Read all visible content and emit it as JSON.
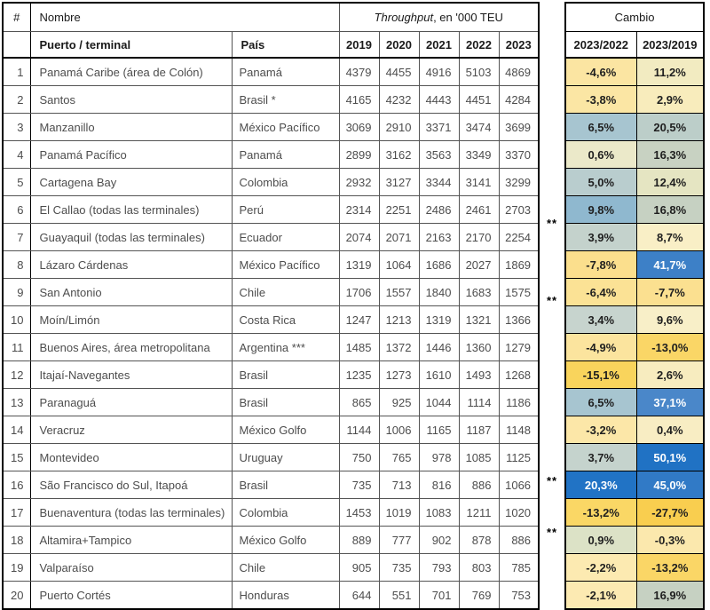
{
  "header": {
    "rank": "#",
    "nombre": "Nombre",
    "throughput_italic": "Throughput",
    "throughput_rest": ", en '000 TEU",
    "puerto": "Puerto / terminal",
    "pais": "País",
    "years": [
      "2019",
      "2020",
      "2021",
      "2022",
      "2023"
    ],
    "cambio": "Cambio",
    "cambio_cols": [
      "2023/2022",
      "2023/2019"
    ]
  },
  "rows": [
    {
      "rank": "1",
      "puerto": "Panamá Caribe (área de Colón)",
      "pais": "Panamá",
      "values": [
        "4379",
        "4455",
        "4916",
        "5103",
        "4869"
      ],
      "note": "",
      "change": [
        {
          "text": "-4,6%",
          "bg": "#FBE5A2",
          "fg": "#1f1f1f"
        },
        {
          "text": "11,2%",
          "bg": "#F2EBC1",
          "fg": "#1f1f1f"
        }
      ]
    },
    {
      "rank": "2",
      "puerto": "Santos",
      "pais": "Brasil *",
      "values": [
        "4165",
        "4232",
        "4443",
        "4451",
        "4284"
      ],
      "note": "",
      "change": [
        {
          "text": "-3,8%",
          "bg": "#FBE6A4",
          "fg": "#1f1f1f"
        },
        {
          "text": "2,9%",
          "bg": "#F8ECBC",
          "fg": "#1f1f1f"
        }
      ]
    },
    {
      "rank": "3",
      "puerto": "Manzanillo",
      "pais": "México Pacífico",
      "values": [
        "3069",
        "2910",
        "3371",
        "3474",
        "3699"
      ],
      "note": "",
      "change": [
        {
          "text": "6,5%",
          "bg": "#A7C5D0",
          "fg": "#1f1f1f"
        },
        {
          "text": "20,5%",
          "bg": "#BCCEC9",
          "fg": "#1f1f1f"
        }
      ]
    },
    {
      "rank": "4",
      "puerto": "Panamá Pacífico",
      "pais": "Panamá",
      "values": [
        "2899",
        "3162",
        "3563",
        "3349",
        "3370"
      ],
      "note": "",
      "change": [
        {
          "text": "0,6%",
          "bg": "#EBE9C9",
          "fg": "#1f1f1f"
        },
        {
          "text": "16,3%",
          "bg": "#C8D2C2",
          "fg": "#1f1f1f"
        }
      ]
    },
    {
      "rank": "5",
      "puerto": "Cartagena Bay",
      "pais": "Colombia",
      "values": [
        "2932",
        "3127",
        "3344",
        "3141",
        "3299"
      ],
      "note": "",
      "change": [
        {
          "text": "5,0%",
          "bg": "#B9CDCE",
          "fg": "#1f1f1f"
        },
        {
          "text": "12,4%",
          "bg": "#E5E5C2",
          "fg": "#1f1f1f"
        }
      ]
    },
    {
      "rank": "6",
      "puerto": "El Callao (todas las terminales)",
      "pais": "Perú",
      "values": [
        "2314",
        "2251",
        "2486",
        "2461",
        "2703"
      ],
      "note": "",
      "change": [
        {
          "text": "9,8%",
          "bg": "#8FB8CF",
          "fg": "#1f1f1f"
        },
        {
          "text": "16,8%",
          "bg": "#C6D1C2",
          "fg": "#1f1f1f"
        }
      ]
    },
    {
      "rank": "7",
      "puerto": "Guayaquil (todas las terminales)",
      "pais": "Ecuador",
      "values": [
        "2074",
        "2071",
        "2163",
        "2170",
        "2254"
      ],
      "note": "**",
      "change": [
        {
          "text": "3,9%",
          "bg": "#C4D2CC",
          "fg": "#1f1f1f"
        },
        {
          "text": "8,7%",
          "bg": "#F9EFC6",
          "fg": "#1f1f1f"
        }
      ]
    },
    {
      "rank": "8",
      "puerto": "Lázaro Cárdenas",
      "pais": "México Pacífico",
      "values": [
        "1319",
        "1064",
        "1686",
        "2027",
        "1869"
      ],
      "note": "",
      "change": [
        {
          "text": "-7,8%",
          "bg": "#FBDF8D",
          "fg": "#1f1f1f"
        },
        {
          "text": "41,7%",
          "bg": "#3D80C7",
          "fg": "#ffffff"
        }
      ]
    },
    {
      "rank": "9",
      "puerto": "San Antonio",
      "pais": "Chile",
      "values": [
        "1706",
        "1557",
        "1840",
        "1683",
        "1575"
      ],
      "note": "",
      "change": [
        {
          "text": "-6,4%",
          "bg": "#FBE295",
          "fg": "#1f1f1f"
        },
        {
          "text": "-7,7%",
          "bg": "#FBE090",
          "fg": "#1f1f1f"
        }
      ]
    },
    {
      "rank": "10",
      "puerto": "Moín/Limón",
      "pais": "Costa Rica",
      "values": [
        "1247",
        "1213",
        "1319",
        "1321",
        "1366"
      ],
      "note": "**",
      "change": [
        {
          "text": "3,4%",
          "bg": "#C7D4CE",
          "fg": "#1f1f1f"
        },
        {
          "text": "9,6%",
          "bg": "#F8EFC8",
          "fg": "#1f1f1f"
        }
      ]
    },
    {
      "rank": "11",
      "puerto": "Buenos Aires, área metropolitana",
      "pais": "Argentina ***",
      "values": [
        "1485",
        "1372",
        "1446",
        "1360",
        "1279"
      ],
      "note": "",
      "change": [
        {
          "text": "-4,9%",
          "bg": "#FBE49E",
          "fg": "#1f1f1f"
        },
        {
          "text": "-13,0%",
          "bg": "#FAD666",
          "fg": "#1f1f1f"
        }
      ]
    },
    {
      "rank": "12",
      "puerto": "Itajaí-Navegantes",
      "pais": "Brasil",
      "values": [
        "1235",
        "1273",
        "1610",
        "1493",
        "1268"
      ],
      "note": "",
      "change": [
        {
          "text": "-15,1%",
          "bg": "#F9D45C",
          "fg": "#1f1f1f"
        },
        {
          "text": "2,6%",
          "bg": "#F7ECBF",
          "fg": "#1f1f1f"
        }
      ]
    },
    {
      "rank": "13",
      "puerto": "Paranaguá",
      "pais": "Brasil",
      "values": [
        "865",
        "925",
        "1044",
        "1114",
        "1186"
      ],
      "note": "",
      "change": [
        {
          "text": "6,5%",
          "bg": "#A7C5D0",
          "fg": "#1f1f1f"
        },
        {
          "text": "37,1%",
          "bg": "#4A87C9",
          "fg": "#ffffff"
        }
      ]
    },
    {
      "rank": "14",
      "puerto": "Veracruz",
      "pais": "México Golfo",
      "values": [
        "1144",
        "1006",
        "1165",
        "1187",
        "1148"
      ],
      "note": "",
      "change": [
        {
          "text": "-3,2%",
          "bg": "#FCE7A8",
          "fg": "#1f1f1f"
        },
        {
          "text": "0,4%",
          "bg": "#F8EDC3",
          "fg": "#1f1f1f"
        }
      ]
    },
    {
      "rank": "15",
      "puerto": "Montevideo",
      "pais": "Uruguay",
      "values": [
        "750",
        "765",
        "978",
        "1085",
        "1125"
      ],
      "note": "",
      "change": [
        {
          "text": "3,7%",
          "bg": "#C5D3CD",
          "fg": "#1f1f1f"
        },
        {
          "text": "50,1%",
          "bg": "#2072C4",
          "fg": "#ffffff"
        }
      ]
    },
    {
      "rank": "16",
      "puerto": "São Francisco do Sul, Itapoá",
      "pais": "Brasil",
      "values": [
        "735",
        "713",
        "816",
        "886",
        "1066"
      ],
      "note": "",
      "change": [
        {
          "text": "20,3%",
          "bg": "#2173C5",
          "fg": "#ffffff"
        },
        {
          "text": "45,0%",
          "bg": "#317AC6",
          "fg": "#ffffff"
        }
      ]
    },
    {
      "rank": "17",
      "puerto": "Buenaventura (todas las terminales)",
      "pais": "Colombia",
      "values": [
        "1453",
        "1019",
        "1083",
        "1211",
        "1020"
      ],
      "note": "**",
      "change": [
        {
          "text": "-13,2%",
          "bg": "#FAD765",
          "fg": "#1f1f1f"
        },
        {
          "text": "-27,7%",
          "bg": "#F9CE4F",
          "fg": "#1f1f1f"
        }
      ]
    },
    {
      "rank": "18",
      "puerto": "Altamira+Tampico",
      "pais": "México Golfo",
      "values": [
        "889",
        "777",
        "902",
        "878",
        "886"
      ],
      "note": "",
      "change": [
        {
          "text": "0,9%",
          "bg": "#DCE2C6",
          "fg": "#1f1f1f"
        },
        {
          "text": "-0,3%",
          "bg": "#FBE8AD",
          "fg": "#1f1f1f"
        }
      ]
    },
    {
      "rank": "19",
      "puerto": "Valparaíso",
      "pais": "Chile",
      "values": [
        "905",
        "735",
        "793",
        "803",
        "785"
      ],
      "note": "**",
      "change": [
        {
          "text": "-2,2%",
          "bg": "#FCEAB1",
          "fg": "#1f1f1f"
        },
        {
          "text": "-13,2%",
          "bg": "#FAD666",
          "fg": "#1f1f1f"
        }
      ]
    },
    {
      "rank": "20",
      "puerto": "Puerto Cortés",
      "pais": "Honduras",
      "values": [
        "644",
        "551",
        "701",
        "769",
        "753"
      ],
      "note": "",
      "change": [
        {
          "text": "-2,1%",
          "bg": "#FCEAB2",
          "fg": "#1f1f1f"
        },
        {
          "text": "16,9%",
          "bg": "#C6D1C2",
          "fg": "#1f1f1f"
        }
      ]
    }
  ],
  "heatmap_colors": {
    "min_negative": "#F9CE4F",
    "mid_neutral": "#F8EDC3",
    "max_positive": "#2072C4",
    "grid": "#545454",
    "outer_border": "#000000"
  },
  "chart_data": {
    "type": "table",
    "title": "Throughput, en '000 TEU",
    "columns": [
      "#",
      "Puerto / terminal",
      "País",
      "2019",
      "2020",
      "2021",
      "2022",
      "2023",
      "Cambio 2023/2022",
      "Cambio 2023/2019"
    ],
    "rows": [
      [
        1,
        "Panamá Caribe (área de Colón)",
        "Panamá",
        4379,
        4455,
        4916,
        5103,
        4869,
        "-4,6%",
        "11,2%"
      ],
      [
        2,
        "Santos",
        "Brasil *",
        4165,
        4232,
        4443,
        4451,
        4284,
        "-3,8%",
        "2,9%"
      ],
      [
        3,
        "Manzanillo",
        "México Pacífico",
        3069,
        2910,
        3371,
        3474,
        3699,
        "6,5%",
        "20,5%"
      ],
      [
        4,
        "Panamá Pacífico",
        "Panamá",
        2899,
        3162,
        3563,
        3349,
        3370,
        "0,6%",
        "16,3%"
      ],
      [
        5,
        "Cartagena Bay",
        "Colombia",
        2932,
        3127,
        3344,
        3141,
        3299,
        "5,0%",
        "12,4%"
      ],
      [
        6,
        "El Callao (todas las terminales)",
        "Perú",
        2314,
        2251,
        2486,
        2461,
        2703,
        "9,8%",
        "16,8%"
      ],
      [
        7,
        "Guayaquil (todas las terminales)",
        "Ecuador",
        2074,
        2071,
        2163,
        2170,
        2254,
        "3,9%",
        "8,7%"
      ],
      [
        8,
        "Lázaro Cárdenas",
        "México Pacífico",
        1319,
        1064,
        1686,
        2027,
        1869,
        "-7,8%",
        "41,7%"
      ],
      [
        9,
        "San Antonio",
        "Chile",
        1706,
        1557,
        1840,
        1683,
        1575,
        "-6,4%",
        "-7,7%"
      ],
      [
        10,
        "Moín/Limón",
        "Costa Rica",
        1247,
        1213,
        1319,
        1321,
        1366,
        "3,4%",
        "9,6%"
      ],
      [
        11,
        "Buenos Aires, área metropolitana",
        "Argentina ***",
        1485,
        1372,
        1446,
        1360,
        1279,
        "-4,9%",
        "-13,0%"
      ],
      [
        12,
        "Itajaí-Navegantes",
        "Brasil",
        1235,
        1273,
        1610,
        1493,
        1268,
        "-15,1%",
        "2,6%"
      ],
      [
        13,
        "Paranaguá",
        "Brasil",
        865,
        925,
        1044,
        1114,
        1186,
        "6,5%",
        "37,1%"
      ],
      [
        14,
        "Veracruz",
        "México Golfo",
        1144,
        1006,
        1165,
        1187,
        1148,
        "-3,2%",
        "0,4%"
      ],
      [
        15,
        "Montevideo",
        "Uruguay",
        750,
        765,
        978,
        1085,
        1125,
        "3,7%",
        "50,1%"
      ],
      [
        16,
        "São Francisco do Sul, Itapoá",
        "Brasil",
        735,
        713,
        816,
        886,
        1066,
        "20,3%",
        "45,0%"
      ],
      [
        17,
        "Buenaventura (todas las terminales)",
        "Colombia",
        1453,
        1019,
        1083,
        1211,
        1020,
        "-13,2%",
        "-27,7%"
      ],
      [
        18,
        "Altamira+Tampico",
        "México Golfo",
        889,
        777,
        902,
        878,
        886,
        "0,9%",
        "-0,3%"
      ],
      [
        19,
        "Valparaíso",
        "Chile",
        905,
        735,
        793,
        803,
        785,
        "-2,2%",
        "-13,2%"
      ],
      [
        20,
        "Puerto Cortés",
        "Honduras",
        644,
        551,
        701,
        769,
        753,
        "-2,1%",
        "16,9%"
      ]
    ],
    "double_asterisk_rows": [
      7,
      10,
      17,
      19
    ],
    "layout": "Conditional-format color scale on the two Cambio columns: gold (most negative) → pale yellow/cream (near zero) → blue with white text (most positive)"
  }
}
